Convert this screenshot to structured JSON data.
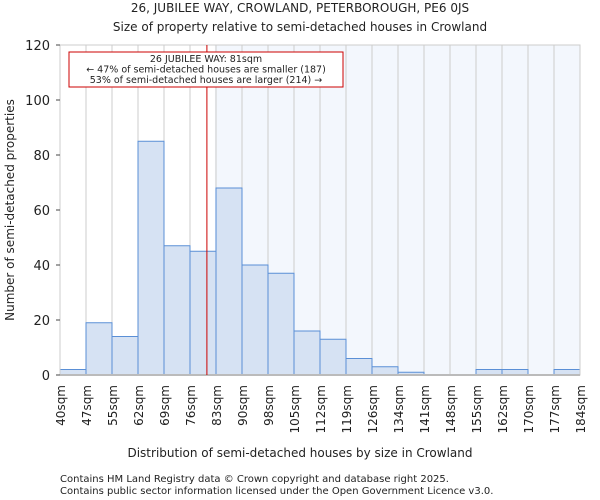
{
  "chart_data": {
    "type": "bar",
    "title": "26, JUBILEE WAY, CROWLAND, PETERBOROUGH, PE6 0JS",
    "subtitle": "Size of property relative to semi-detached houses in Crowland",
    "xlabel": "Distribution of semi-detached houses by size in Crowland",
    "ylabel": "Number of semi-detached properties",
    "tick_labels": [
      "40sqm",
      "47sqm",
      "55sqm",
      "62sqm",
      "69sqm",
      "76sqm",
      "83sqm",
      "90sqm",
      "98sqm",
      "105sqm",
      "112sqm",
      "119sqm",
      "126sqm",
      "134sqm",
      "141sqm",
      "148sqm",
      "155sqm",
      "162sqm",
      "170sqm",
      "177sqm",
      "184sqm"
    ],
    "values": [
      2,
      19,
      14,
      85,
      47,
      45,
      68,
      40,
      37,
      16,
      13,
      6,
      3,
      1,
      0,
      0,
      2,
      2,
      0,
      2
    ],
    "ylim": [
      0,
      120
    ],
    "yticks": [
      0,
      20,
      40,
      60,
      80,
      100,
      120
    ],
    "marker_bin_position": 5.65,
    "annotation": [
      "26 JUBILEE WAY: 81sqm",
      "← 47% of semi-detached houses are smaller (187)",
      "53% of semi-detached houses are larger (214) →"
    ],
    "colors": {
      "bar": "#d6e2f3",
      "bar_edge": "#5a8fd6",
      "marker": "#cc0000",
      "highlight_bg": "#f3f7fd"
    }
  },
  "footer": [
    "Contains HM Land Registry data © Crown copyright and database right 2025.",
    "Contains public sector information licensed under the Open Government Licence v3.0."
  ]
}
